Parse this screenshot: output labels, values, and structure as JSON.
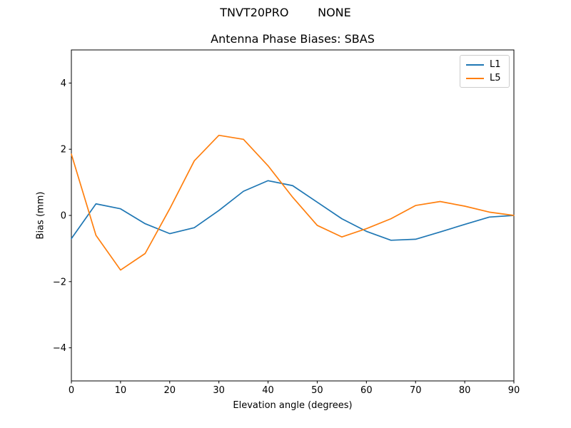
{
  "figure": {
    "suptitle": "TNVT20PRO        NONE",
    "background": "#ffffff"
  },
  "chart_data": {
    "type": "line",
    "title": "Antenna Phase Biases: SBAS",
    "xlabel": "Elevation angle (degrees)",
    "ylabel": "Bias (mm)",
    "xlim": [
      0,
      90
    ],
    "ylim": [
      -5,
      5
    ],
    "xticks": [
      0,
      10,
      20,
      30,
      40,
      50,
      60,
      70,
      80,
      90
    ],
    "xtick_labels": [
      "0",
      "10",
      "20",
      "30",
      "40",
      "50",
      "60",
      "70",
      "80",
      "90"
    ],
    "yticks": [
      -4,
      -2,
      0,
      2,
      4
    ],
    "ytick_labels": [
      "−4",
      "−2",
      "0",
      "2",
      "4"
    ],
    "grid": false,
    "legend_position": "upper right",
    "x": [
      0,
      5,
      10,
      15,
      20,
      25,
      30,
      35,
      40,
      45,
      50,
      55,
      60,
      65,
      70,
      75,
      80,
      85,
      90
    ],
    "series": [
      {
        "name": "L1",
        "color": "#1f77b4",
        "values": [
          -0.7,
          0.35,
          0.2,
          -0.25,
          -0.55,
          -0.37,
          0.15,
          0.73,
          1.05,
          0.9,
          0.4,
          -0.1,
          -0.48,
          -0.75,
          -0.72,
          -0.5,
          -0.27,
          -0.05,
          0.0
        ]
      },
      {
        "name": "L5",
        "color": "#ff7f0e",
        "values": [
          1.85,
          -0.6,
          -1.65,
          -1.15,
          0.2,
          1.65,
          2.42,
          2.3,
          1.5,
          0.55,
          -0.3,
          -0.65,
          -0.4,
          -0.1,
          0.3,
          0.42,
          0.28,
          0.1,
          0.0
        ]
      }
    ]
  }
}
